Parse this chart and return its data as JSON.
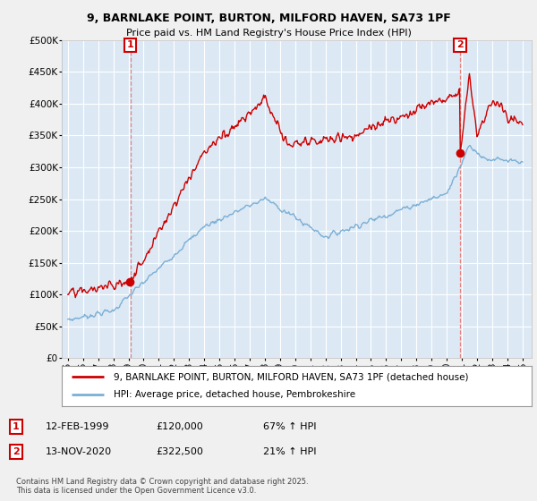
{
  "title1": "9, BARNLAKE POINT, BURTON, MILFORD HAVEN, SA73 1PF",
  "title2": "Price paid vs. HM Land Registry's House Price Index (HPI)",
  "legend_line1": "9, BARNLAKE POINT, BURTON, MILFORD HAVEN, SA73 1PF (detached house)",
  "legend_line2": "HPI: Average price, detached house, Pembrokeshire",
  "annotation1_date": "12-FEB-1999",
  "annotation1_price": "£120,000",
  "annotation1_hpi": "67% ↑ HPI",
  "annotation2_date": "13-NOV-2020",
  "annotation2_price": "£322,500",
  "annotation2_hpi": "21% ↑ HPI",
  "footer": "Contains HM Land Registry data © Crown copyright and database right 2025.\nThis data is licensed under the Open Government Licence v3.0.",
  "red_color": "#cc0000",
  "blue_color": "#7bafd4",
  "vline_color": "#e88080",
  "bg_color": "#f0f0f0",
  "plot_bg": "#dce9f5",
  "grid_color": "#ffffff",
  "ylim": [
    0,
    500000
  ],
  "yticks": [
    0,
    50000,
    100000,
    150000,
    200000,
    250000,
    300000,
    350000,
    400000,
    450000,
    500000
  ],
  "sale1_year": 1999.12,
  "sale1_price": 120000,
  "sale2_year": 2020.87,
  "sale2_price": 322500,
  "xstart": 1995,
  "xend": 2025
}
